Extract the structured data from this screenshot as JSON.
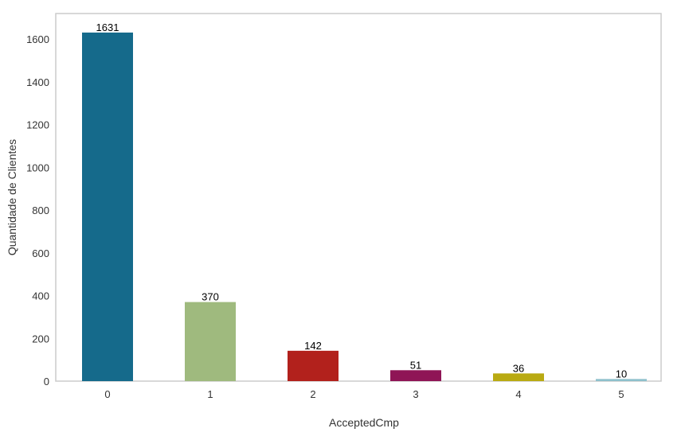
{
  "chart_data": {
    "type": "bar",
    "title": "",
    "xlabel": "AcceptedCmp",
    "ylabel": "Quantidade de Clientes",
    "categories": [
      "0",
      "1",
      "2",
      "3",
      "4",
      "5"
    ],
    "values": [
      1631,
      370,
      142,
      51,
      36,
      10
    ],
    "data_labels": [
      "1631",
      "370",
      "142",
      "51",
      "36",
      "10"
    ],
    "colors": [
      "#156a8b",
      "#9fba7e",
      "#b2211c",
      "#8f1556",
      "#b9aa12",
      "#8ec0cc"
    ],
    "ylim": [
      0,
      1720
    ],
    "yticks": [
      0,
      200,
      400,
      600,
      800,
      1000,
      1200,
      1400,
      1600
    ],
    "ytick_labels": [
      "0",
      "200",
      "400",
      "600",
      "800",
      "1000",
      "1200",
      "1400",
      "1600"
    ],
    "grid": false,
    "legend": "none"
  }
}
